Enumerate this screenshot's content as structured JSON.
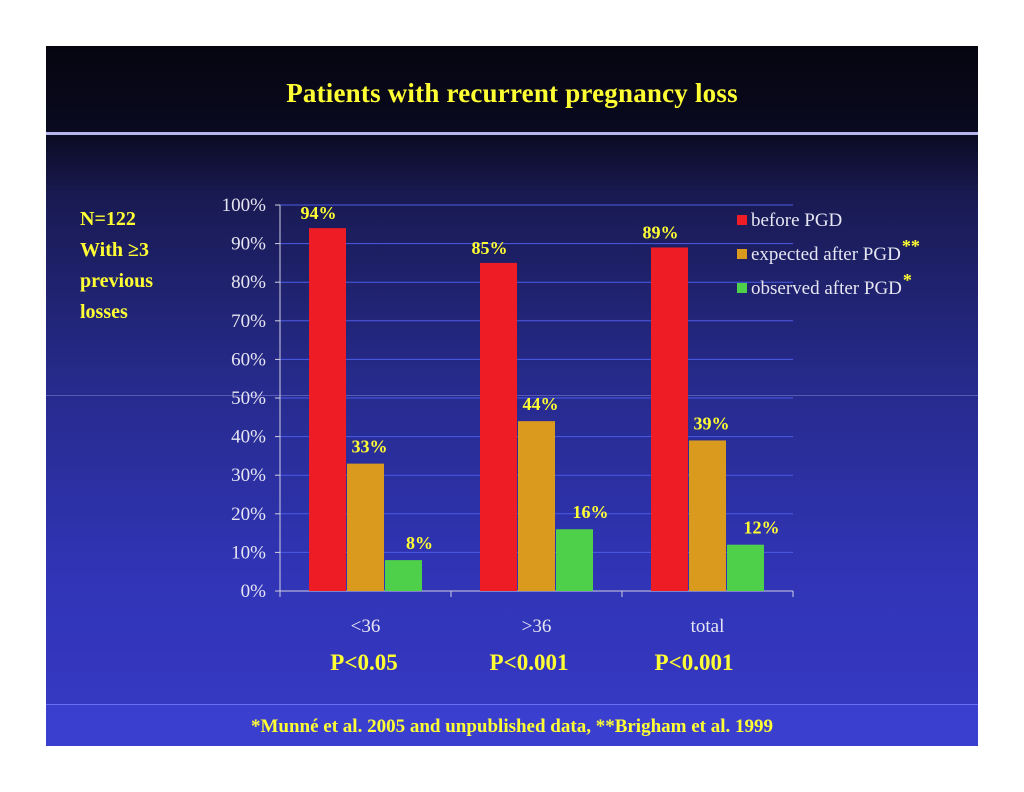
{
  "slide": {
    "title": "Patients with recurrent pregnancy loss",
    "note_lines": [
      "N=122",
      "With ≥3",
      "previous",
      "losses"
    ],
    "pvalues": [
      "P<0.05",
      "P<0.001",
      "P<0.001"
    ],
    "footer": "*Munné et al. 2005 and unpublished data, **Brigham et al. 1999",
    "colors": {
      "background": "#2a2e9c",
      "accent_text": "#ffff33",
      "rule": "#b7b5f0"
    }
  },
  "chart_data": {
    "type": "bar",
    "categories": [
      "<36",
      ">36",
      "total"
    ],
    "series": [
      {
        "name": "before PGD",
        "legend_suffix": "",
        "color": "#ee1c25",
        "values": [
          94,
          85,
          89
        ],
        "labels": [
          "94%",
          "85%",
          "89%"
        ]
      },
      {
        "name": "expected after PGD",
        "legend_suffix": "**",
        "color": "#d99a1e",
        "values": [
          33,
          44,
          39
        ],
        "labels": [
          "33%",
          "44%",
          "39%"
        ]
      },
      {
        "name": "observed after PGD",
        "legend_suffix": "*",
        "color": "#4fd04a",
        "values": [
          8,
          16,
          12
        ],
        "labels": [
          "8%",
          "16%",
          "12%"
        ]
      }
    ],
    "ylim": [
      0,
      100
    ],
    "yticks": [
      0,
      10,
      20,
      30,
      40,
      50,
      60,
      70,
      80,
      90,
      100
    ],
    "ytick_labels": [
      "0%",
      "10%",
      "20%",
      "30%",
      "40%",
      "50%",
      "60%",
      "70%",
      "80%",
      "90%",
      "100%"
    ],
    "grid": true,
    "legend_position": "top-right",
    "title": "",
    "xlabel": "",
    "ylabel": ""
  }
}
